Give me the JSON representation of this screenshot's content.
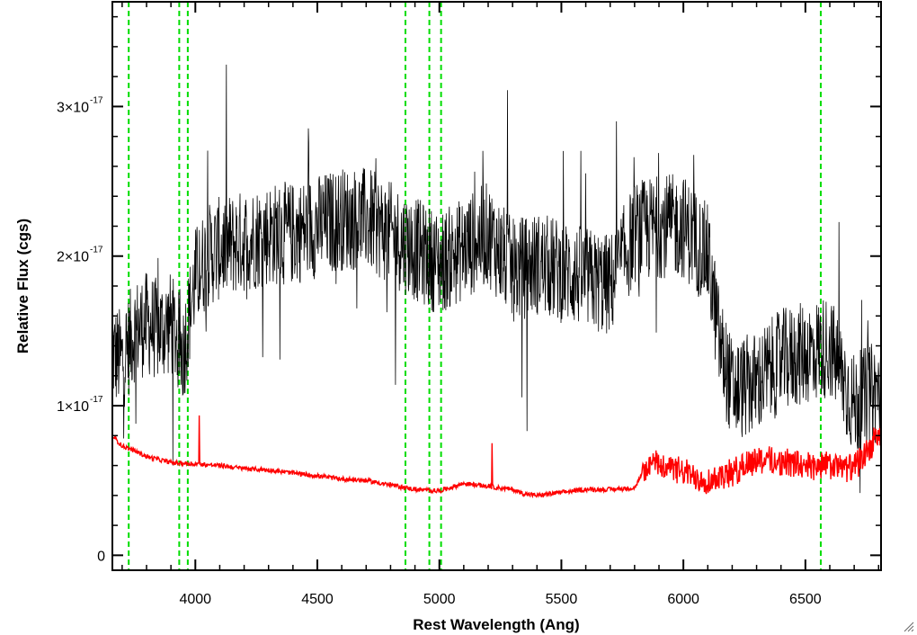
{
  "chart_data": {
    "type": "line",
    "title": "",
    "xlabel": "Rest Wavelength (Ang)",
    "ylabel": "Relative Flux (cgs)",
    "xlim": [
      3660,
      6810
    ],
    "ylim": [
      -0.1,
      3.7
    ],
    "y_unit_exponent": -17,
    "x_ticks": [
      4000,
      4500,
      5000,
      5500,
      6000,
      6500
    ],
    "x_tick_labels": [
      "4000",
      "4500",
      "5000",
      "5500",
      "6000",
      "6500"
    ],
    "y_ticks": [
      0,
      1,
      2,
      3
    ],
    "y_tick_labels": [
      "0",
      "1×10",
      "2×10",
      "3×10"
    ],
    "y_tick_exponent_label": "-17",
    "reference_lines": {
      "color": "#00dd00",
      "style": "dashed",
      "x": [
        3727,
        3934,
        3969,
        4861,
        4959,
        5007,
        6563
      ]
    },
    "series": [
      {
        "color": "#000000",
        "x": [
          3660,
          3700,
          3750,
          3800,
          3850,
          3900,
          3950,
          4000,
          4050,
          4100,
          4200,
          4300,
          4400,
          4500,
          4600,
          4700,
          4800,
          4900,
          5000,
          5100,
          5200,
          5300,
          5400,
          5500,
          5600,
          5700,
          5800,
          5900,
          6000,
          6100,
          6150,
          6200,
          6300,
          6400,
          6500,
          6600,
          6700,
          6800
        ],
        "y": [
          1.35,
          1.3,
          1.5,
          1.55,
          1.5,
          1.55,
          1.35,
          1.85,
          2.0,
          2.05,
          2.1,
          2.15,
          2.15,
          2.2,
          2.25,
          2.25,
          2.15,
          2.05,
          1.95,
          2.05,
          2.15,
          1.9,
          1.95,
          1.9,
          1.85,
          1.8,
          2.15,
          2.2,
          2.2,
          2.0,
          1.4,
          1.1,
          1.15,
          1.3,
          1.35,
          1.4,
          1.0,
          1.1
        ]
      },
      {
        "color": "#ff0000",
        "x": [
          3660,
          3700,
          3750,
          3800,
          3900,
          4000,
          4100,
          4200,
          4300,
          4400,
          4500,
          4600,
          4700,
          4800,
          4900,
          5000,
          5100,
          5200,
          5300,
          5350,
          5400,
          5500,
          5600,
          5700,
          5800,
          5850,
          5900,
          6000,
          6100,
          6200,
          6300,
          6400,
          6500,
          6600,
          6700,
          6800
        ],
        "y": [
          0.8,
          0.73,
          0.7,
          0.66,
          0.62,
          0.61,
          0.6,
          0.58,
          0.57,
          0.55,
          0.53,
          0.51,
          0.5,
          0.47,
          0.44,
          0.43,
          0.48,
          0.46,
          0.44,
          0.41,
          0.4,
          0.42,
          0.44,
          0.44,
          0.45,
          0.6,
          0.62,
          0.55,
          0.5,
          0.55,
          0.65,
          0.62,
          0.6,
          0.6,
          0.58,
          0.8
        ]
      }
    ]
  }
}
